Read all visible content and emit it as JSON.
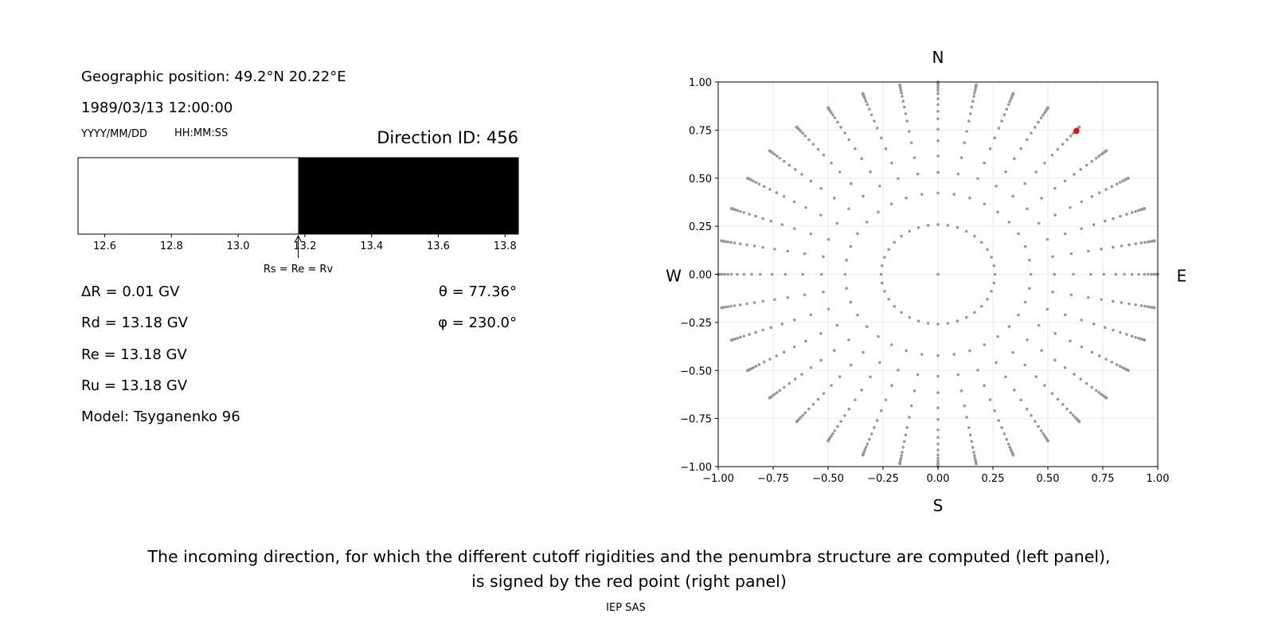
{
  "left_panel": {
    "geo_position": "Geographic position: 49.2°N 20.22°E",
    "datetime": "1989/03/13 12:00:00",
    "date_format": "YYYY/MM/DD",
    "time_format": "HH:MM:SS",
    "direction_id": "Direction ID: 456",
    "delta_r": "ΔR = 0.01 GV",
    "rd": "Rd = 13.18 GV",
    "re": "Re = 13.18 GV",
    "ru": "Ru = 13.18 GV",
    "model": "Model: Tsyganenko 96",
    "theta": "θ = 77.36°",
    "phi": "φ = 230.0°",
    "arrow_label": "Rs = Re = Rv"
  },
  "caption": {
    "line1": "The incoming direction, for which the different cutoff rigidities and the penumbra structure are computed (left panel),",
    "line2": "is signed by the red point (right panel)",
    "credit": "IEP SAS"
  },
  "chart_data": [
    {
      "type": "bar",
      "description_role": "penumbra",
      "xlim": [
        12.52,
        13.84
      ],
      "xticks": [
        "12.6",
        "12.8",
        "13.0",
        "13.2",
        "13.4",
        "13.6",
        "13.8"
      ],
      "segments": [
        {
          "from": 12.52,
          "to": 13.18,
          "color": "#ffffff"
        },
        {
          "from": 13.18,
          "to": 13.84,
          "color": "#000000"
        }
      ],
      "annotation": {
        "x": 13.18,
        "text": "Rs = Re = Rv"
      }
    },
    {
      "type": "scatter",
      "xlim": [
        -1,
        1
      ],
      "ylim": [
        -1,
        1
      ],
      "grid": true,
      "xticks": [
        "−1.00",
        "−0.75",
        "−0.50",
        "−0.25",
        "0.00",
        "0.25",
        "0.50",
        "0.75",
        "1.00"
      ],
      "yticks": [
        "−1.00",
        "−0.75",
        "−0.50",
        "−0.25",
        "0.00",
        "0.25",
        "0.50",
        "0.75",
        "1.00"
      ],
      "compass": {
        "top": "N",
        "bottom": "S",
        "left": "W",
        "right": "E"
      },
      "grid_points": {
        "color": "#999999",
        "azimuth_step_deg": 10,
        "zenith_deg": [
          15,
          25,
          32,
          38,
          44,
          49,
          54,
          58,
          62,
          66,
          70,
          73,
          76,
          79,
          82,
          84,
          86,
          88,
          89,
          90
        ],
        "center_point": [
          0,
          0
        ]
      },
      "selected_point": {
        "x": 0.63,
        "y": 0.745,
        "color": "#ff0000"
      }
    }
  ]
}
